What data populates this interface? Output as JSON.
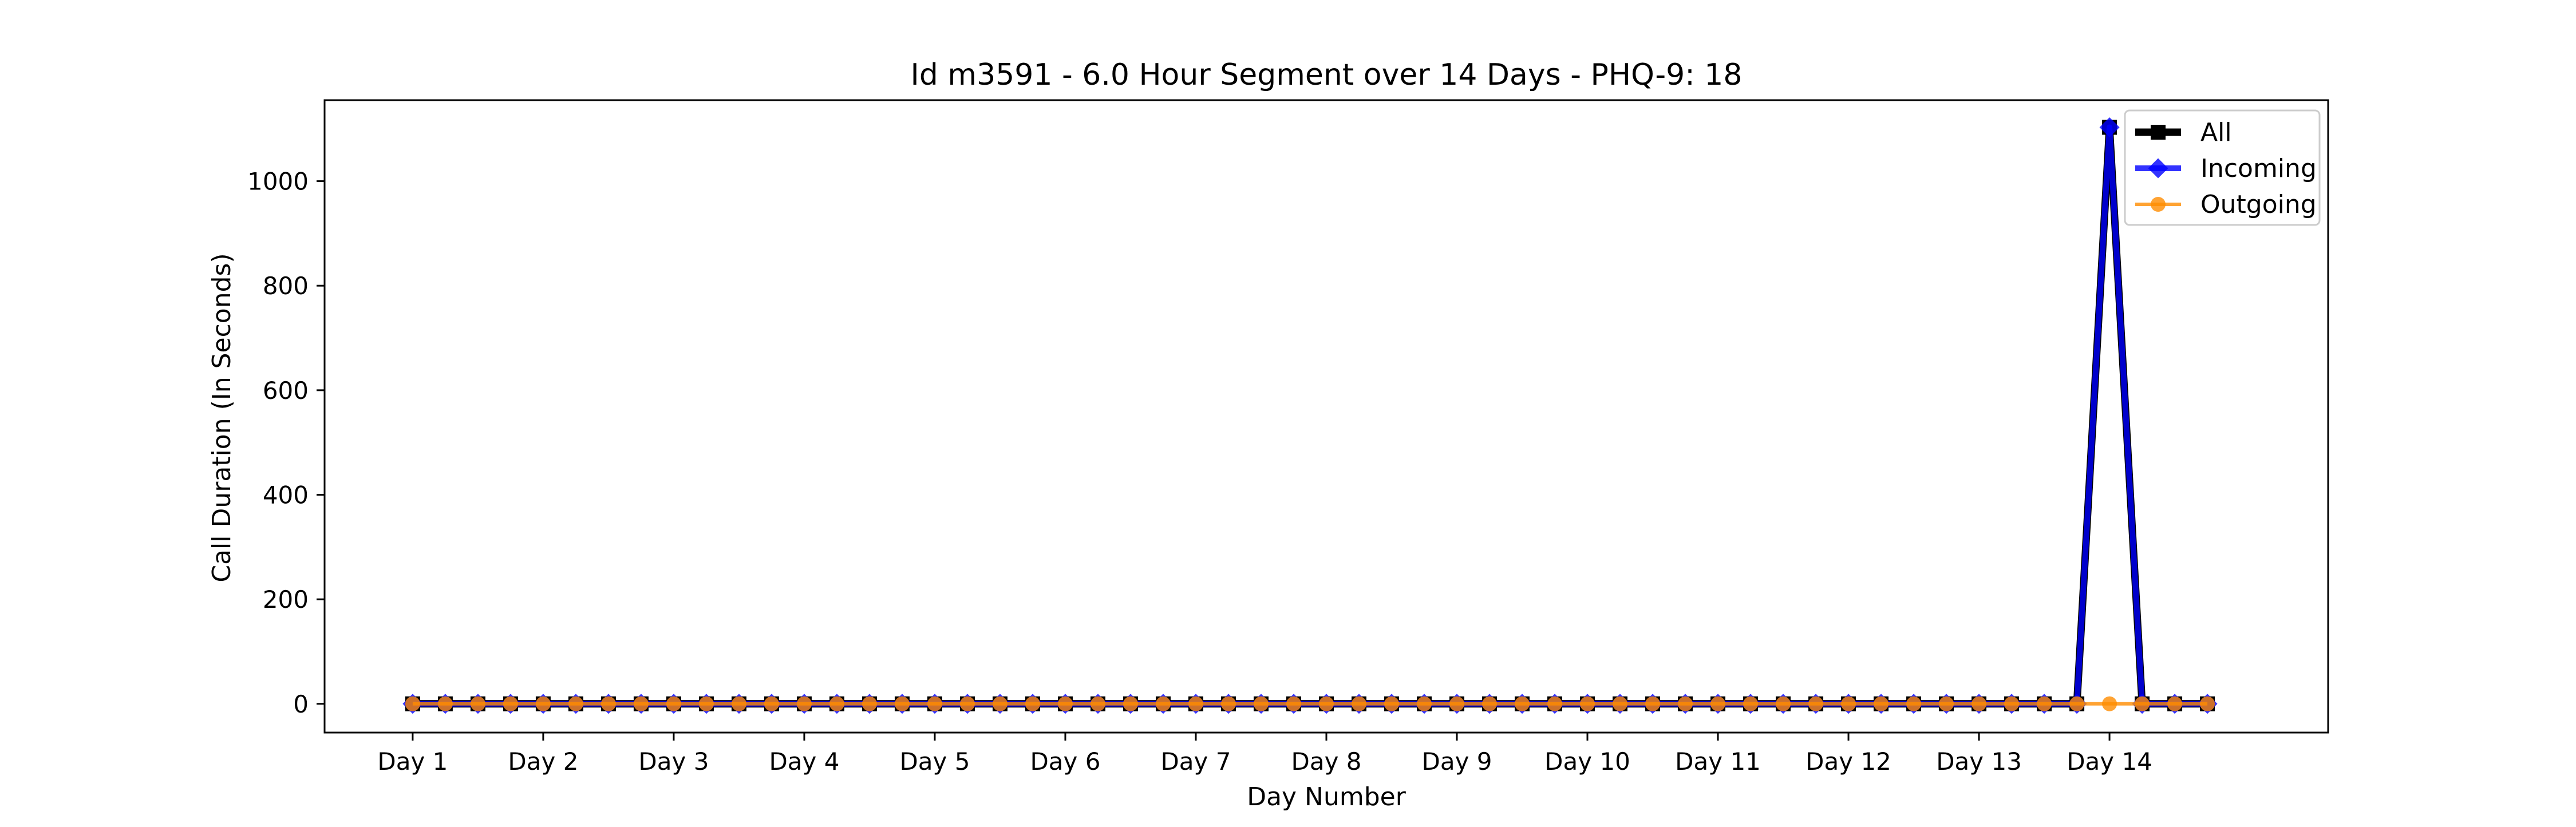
{
  "chart_data": {
    "type": "line",
    "title": "Id m3591 - 6.0 Hour Segment over 14 Days - PHQ-9: 18",
    "xlabel": "Day Number",
    "ylabel": "Call Duration (In Seconds)",
    "x_tick_labels": [
      "Day 1",
      "Day 2",
      "Day 3",
      "Day 4",
      "Day 5",
      "Day 6",
      "Day 7",
      "Day 8",
      "Day 9",
      "Day 10",
      "Day 11",
      "Day 12",
      "Day 13",
      "Day 14"
    ],
    "y_ticks": [
      0,
      200,
      400,
      600,
      800,
      1000
    ],
    "ylim": [
      -55,
      1155
    ],
    "xlim": [
      -2.7,
      58.7
    ],
    "grid": false,
    "legend_position": "top-right",
    "points_per_day": 4,
    "series": [
      {
        "name": "All",
        "color": "#000000",
        "marker": "square",
        "values": [
          0,
          0,
          0,
          0,
          0,
          0,
          0,
          0,
          0,
          0,
          0,
          0,
          0,
          0,
          0,
          0,
          0,
          0,
          0,
          0,
          0,
          0,
          0,
          0,
          0,
          0,
          0,
          0,
          0,
          0,
          0,
          0,
          0,
          0,
          0,
          0,
          0,
          0,
          0,
          0,
          0,
          0,
          0,
          0,
          0,
          0,
          0,
          0,
          0,
          0,
          0,
          0,
          1103,
          0,
          0,
          0
        ]
      },
      {
        "name": "Incoming",
        "color": "#0000ff",
        "marker": "diamond",
        "values": [
          0,
          0,
          0,
          0,
          0,
          0,
          0,
          0,
          0,
          0,
          0,
          0,
          0,
          0,
          0,
          0,
          0,
          0,
          0,
          0,
          0,
          0,
          0,
          0,
          0,
          0,
          0,
          0,
          0,
          0,
          0,
          0,
          0,
          0,
          0,
          0,
          0,
          0,
          0,
          0,
          0,
          0,
          0,
          0,
          0,
          0,
          0,
          0,
          0,
          0,
          0,
          0,
          1103,
          0,
          0,
          0
        ]
      },
      {
        "name": "Outgoing",
        "color": "#ff8c00",
        "marker": "circle",
        "values": [
          0,
          0,
          0,
          0,
          0,
          0,
          0,
          0,
          0,
          0,
          0,
          0,
          0,
          0,
          0,
          0,
          0,
          0,
          0,
          0,
          0,
          0,
          0,
          0,
          0,
          0,
          0,
          0,
          0,
          0,
          0,
          0,
          0,
          0,
          0,
          0,
          0,
          0,
          0,
          0,
          0,
          0,
          0,
          0,
          0,
          0,
          0,
          0,
          0,
          0,
          0,
          0,
          0,
          0,
          0,
          0
        ]
      }
    ]
  }
}
